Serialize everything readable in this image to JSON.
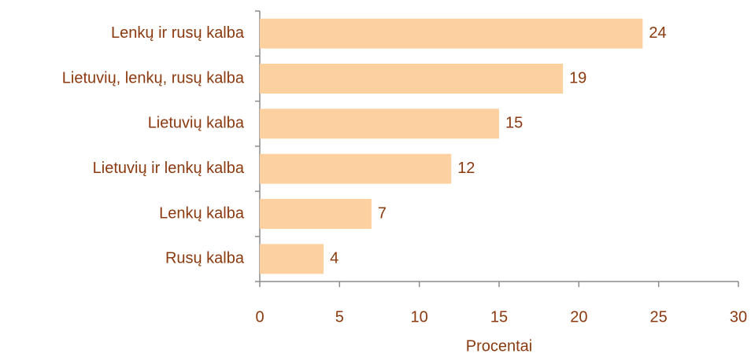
{
  "chart_data": {
    "type": "bar",
    "orientation": "horizontal",
    "categories": [
      "Lenkų ir rusų kalba",
      "Lietuvių, lenkų, rusų kalba",
      "Lietuvių kalba",
      "Lietuvių ir lenkų kalba",
      "Lenkų kalba",
      "Rusų kalba"
    ],
    "values": [
      24,
      19,
      15,
      12,
      7,
      4
    ],
    "color": "#fdd0a0",
    "xlabel": "Procentai",
    "xlim": [
      0,
      30
    ],
    "xticks": [
      0,
      5,
      10,
      15,
      20,
      25,
      30
    ],
    "grid": false
  }
}
